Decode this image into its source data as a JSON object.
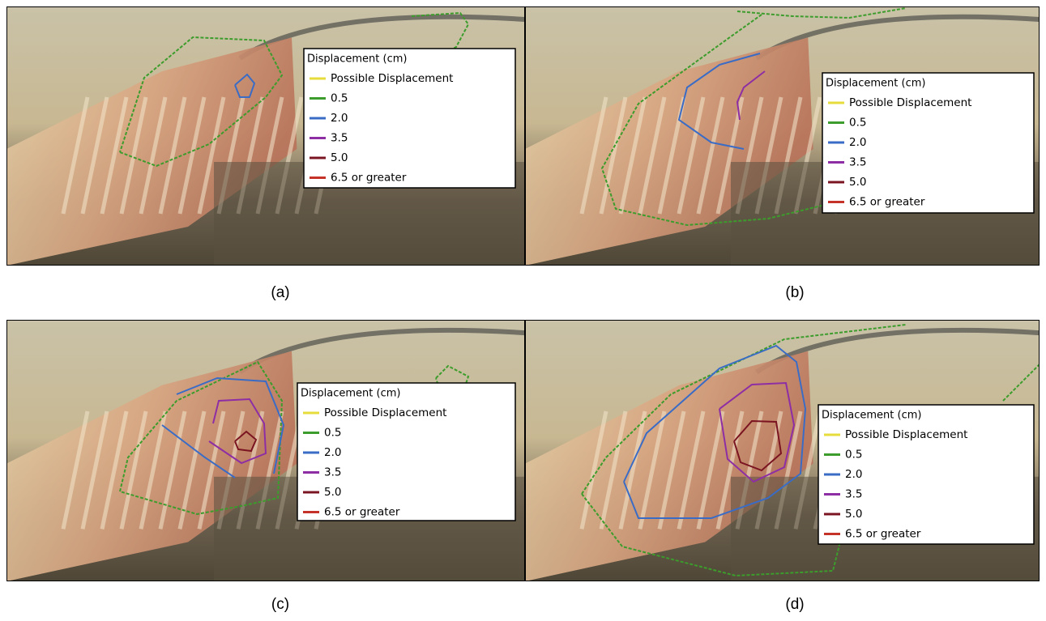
{
  "panels": [
    {
      "caption": "(a)",
      "legend": {
        "title": "Displacement (cm)",
        "items": [
          {
            "label": "Possible Displacement",
            "color": "#e6dc3c"
          },
          {
            "label": "0.5",
            "color": "#3c9c2c"
          },
          {
            "label": "2.0",
            "color": "#3a6cc6"
          },
          {
            "label": "3.5",
            "color": "#8e2ea4"
          },
          {
            "label": "5.0",
            "color": "#7a1420"
          },
          {
            "label": "6.5 or greater",
            "color": "#c43228"
          }
        ]
      }
    },
    {
      "caption": "(b)",
      "legend": {
        "title": "Displacement (cm)",
        "items": [
          {
            "label": "Possible Displacement",
            "color": "#e6dc3c"
          },
          {
            "label": "0.5",
            "color": "#3c9c2c"
          },
          {
            "label": "2.0",
            "color": "#3a6cc6"
          },
          {
            "label": "3.5",
            "color": "#8e2ea4"
          },
          {
            "label": "5.0",
            "color": "#7a1420"
          },
          {
            "label": "6.5 or greater",
            "color": "#c43228"
          }
        ]
      }
    },
    {
      "caption": "(c)",
      "legend": {
        "title": "Displacement (cm)",
        "items": [
          {
            "label": "Possible Displacement",
            "color": "#e6dc3c"
          },
          {
            "label": "0.5",
            "color": "#3c9c2c"
          },
          {
            "label": "2.0",
            "color": "#3a6cc6"
          },
          {
            "label": "3.5",
            "color": "#8e2ea4"
          },
          {
            "label": "5.0",
            "color": "#7a1420"
          },
          {
            "label": "6.5 or greater",
            "color": "#c43228"
          }
        ]
      }
    },
    {
      "caption": "(d)",
      "legend": {
        "title": "Displacement (cm)",
        "items": [
          {
            "label": "Possible Displacement",
            "color": "#e6dc3c"
          },
          {
            "label": "0.5",
            "color": "#3c9c2c"
          },
          {
            "label": "2.0",
            "color": "#3a6cc6"
          },
          {
            "label": "3.5",
            "color": "#8e2ea4"
          },
          {
            "label": "5.0",
            "color": "#7a1420"
          },
          {
            "label": "6.5 or greater",
            "color": "#c43228"
          }
        ]
      }
    }
  ]
}
